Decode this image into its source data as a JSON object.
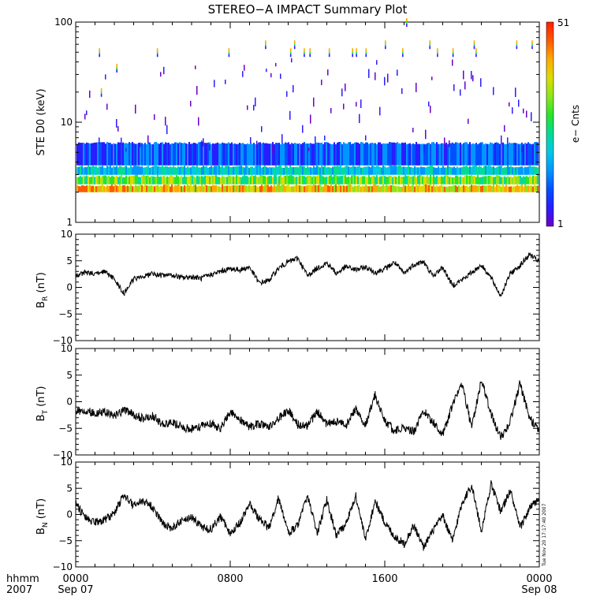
{
  "title": "STEREO−A IMPACT Summary Plot",
  "stamp": "Tue Nov 20 17:17:40 2007",
  "colorbar": {
    "label": "e− Cnts",
    "min_label": "1",
    "max_label": "51",
    "colors": [
      "#6a00c8",
      "#2a1cff",
      "#0050ff",
      "#0096ff",
      "#00c8e6",
      "#00dc96",
      "#28e628",
      "#8ce61e",
      "#dcdc00",
      "#ffaa00",
      "#ff5a00",
      "#ff1e00"
    ]
  },
  "xaxis": {
    "row_label": "hhmm",
    "year_label": "2007",
    "ticks": [
      {
        "x": 0,
        "top": "0000",
        "bottom": "Sep 07"
      },
      {
        "x": 8,
        "top": "0800",
        "bottom": ""
      },
      {
        "x": 16,
        "top": "1600",
        "bottom": ""
      },
      {
        "x": 24,
        "top": "0000",
        "bottom": "Sep 08"
      }
    ]
  },
  "chart_data": [
    {
      "type": "heatmap",
      "ylabel": "STE D0 (keV)",
      "yscale": "log",
      "ylim": [
        1,
        100
      ],
      "yticks": [
        "1",
        "10",
        "100"
      ],
      "xlim": [
        0,
        24
      ],
      "zlim": [
        1,
        51
      ],
      "description_values": {
        "band_low_keV": 2.0,
        "band_high_keV": 5.5,
        "streak_points": [
          {
            "x": 1.2,
            "y": 50
          },
          {
            "x": 4.2,
            "y": 50
          },
          {
            "x": 7.9,
            "y": 50
          },
          {
            "x": 9.8,
            "y": 60
          },
          {
            "x": 11.1,
            "y": 50
          },
          {
            "x": 11.3,
            "y": 60
          },
          {
            "x": 11.8,
            "y": 50
          },
          {
            "x": 12.1,
            "y": 50
          },
          {
            "x": 13.1,
            "y": 50
          },
          {
            "x": 14.3,
            "y": 50
          },
          {
            "x": 14.5,
            "y": 50
          },
          {
            "x": 15.0,
            "y": 50
          },
          {
            "x": 16.0,
            "y": 60
          },
          {
            "x": 16.9,
            "y": 50
          },
          {
            "x": 18.3,
            "y": 60
          },
          {
            "x": 18.7,
            "y": 50
          },
          {
            "x": 19.5,
            "y": 50
          },
          {
            "x": 20.6,
            "y": 60
          },
          {
            "x": 20.7,
            "y": 50
          },
          {
            "x": 22.8,
            "y": 60
          },
          {
            "x": 23.6,
            "y": 60
          },
          {
            "x": 17.1,
            "y": 100
          },
          {
            "x": 2.1,
            "y": 35
          },
          {
            "x": 1.3,
            "y": 20
          }
        ]
      }
    },
    {
      "type": "line",
      "ylabel": "B",
      "ysub": "R",
      "yunit": " (nT)",
      "ylim": [
        -10,
        10
      ],
      "yticks": [
        "−10",
        "−5",
        "0",
        "5",
        "10"
      ],
      "xlim": [
        0,
        24
      ],
      "x": [
        0,
        0.5,
        1,
        1.5,
        2,
        2.5,
        3,
        3.5,
        4,
        4.5,
        5,
        5.5,
        6,
        6.5,
        7,
        7.5,
        8,
        8.5,
        9,
        9.5,
        10,
        10.5,
        11,
        11.5,
        12,
        12.5,
        13,
        13.5,
        14,
        14.5,
        15,
        15.5,
        16,
        16.5,
        17,
        17.5,
        18,
        18.5,
        19,
        19.5,
        20,
        20.5,
        21,
        21.5,
        22,
        22.5,
        23,
        23.5,
        24
      ],
      "values": [
        2.2,
        2.8,
        2.6,
        2.9,
        1.6,
        -1.2,
        1.6,
        2.0,
        2.6,
        2.2,
        2.3,
        1.8,
        2.0,
        1.7,
        2.4,
        3.0,
        3.5,
        3.3,
        3.8,
        0.8,
        1.3,
        3.6,
        4.8,
        5.5,
        2.2,
        3.6,
        4.6,
        2.6,
        3.9,
        3.3,
        3.8,
        2.8,
        3.5,
        4.7,
        2.6,
        4.3,
        4.8,
        2.1,
        3.8,
        0.4,
        1.4,
        2.8,
        4.2,
        1.8,
        -1.6,
        2.6,
        4.1,
        6.2,
        4.8
      ]
    },
    {
      "type": "line",
      "ylabel": "B",
      "ysub": "T",
      "yunit": " (nT)",
      "ylim": [
        -10,
        10
      ],
      "yticks": [
        "−10",
        "−5",
        "0",
        "5",
        "10"
      ],
      "xlim": [
        0,
        24
      ],
      "x": [
        0,
        0.5,
        1,
        1.5,
        2,
        2.5,
        3,
        3.5,
        4,
        4.5,
        5,
        5.5,
        6,
        6.5,
        7,
        7.5,
        8,
        8.5,
        9,
        9.5,
        10,
        10.5,
        11,
        11.5,
        12,
        12.5,
        13,
        13.5,
        14,
        14.5,
        15,
        15.5,
        16,
        16.5,
        17,
        17.5,
        18,
        18.5,
        19,
        19.5,
        20,
        20.5,
        21,
        21.5,
        22,
        22.5,
        23,
        23.5,
        24
      ],
      "values": [
        -1.8,
        -1.6,
        -2.2,
        -2.0,
        -2.7,
        -1.5,
        -2.4,
        -3.2,
        -2.6,
        -4.3,
        -3.9,
        -4.8,
        -5.1,
        -4.6,
        -4.1,
        -5.0,
        -1.8,
        -3.4,
        -4.7,
        -4.1,
        -4.9,
        -3.2,
        -1.5,
        -4.3,
        -4.6,
        -1.8,
        -4.2,
        -3.7,
        -4.4,
        -1.2,
        -4.3,
        1.2,
        -3.6,
        -5.4,
        -4.8,
        -5.6,
        -1.6,
        -3.9,
        -6.2,
        -0.8,
        3.6,
        -5.0,
        4.2,
        -2.4,
        -6.8,
        -3.6,
        3.4,
        -3.1,
        -5.4
      ]
    },
    {
      "type": "line",
      "ylabel": "B",
      "ysub": "N",
      "yunit": " (nT)",
      "ylim": [
        -10,
        10
      ],
      "yticks": [
        "−10",
        "−5",
        "0",
        "5",
        "10"
      ],
      "xlim": [
        0,
        24
      ],
      "x": [
        0,
        0.5,
        1,
        1.5,
        2,
        2.5,
        3,
        3.5,
        4,
        4.5,
        5,
        5.5,
        6,
        6.5,
        7,
        7.5,
        8,
        8.5,
        9,
        9.5,
        10,
        10.5,
        11,
        11.5,
        12,
        12.5,
        13,
        13.5,
        14,
        14.5,
        15,
        15.5,
        16,
        16.5,
        17,
        17.5,
        18,
        18.5,
        19,
        19.5,
        20,
        20.5,
        21,
        21.5,
        22,
        22.5,
        23,
        23.5,
        24
      ],
      "values": [
        2.0,
        -0.6,
        -1.5,
        -1.1,
        0.3,
        3.8,
        1.6,
        2.7,
        1.4,
        -1.8,
        -2.6,
        -1.2,
        -0.4,
        -2.3,
        -2.8,
        -0.4,
        -3.6,
        -1.6,
        2.0,
        -0.9,
        -2.6,
        3.2,
        -3.5,
        -2.2,
        3.6,
        -3.7,
        2.8,
        -4.0,
        -1.6,
        3.5,
        -4.8,
        2.6,
        -1.5,
        -4.2,
        -5.6,
        -2.1,
        -6.2,
        -3.1,
        -0.2,
        -5.1,
        2.2,
        5.6,
        -3.2,
        5.8,
        0.6,
        4.6,
        -2.6,
        1.2,
        3.0
      ]
    }
  ]
}
